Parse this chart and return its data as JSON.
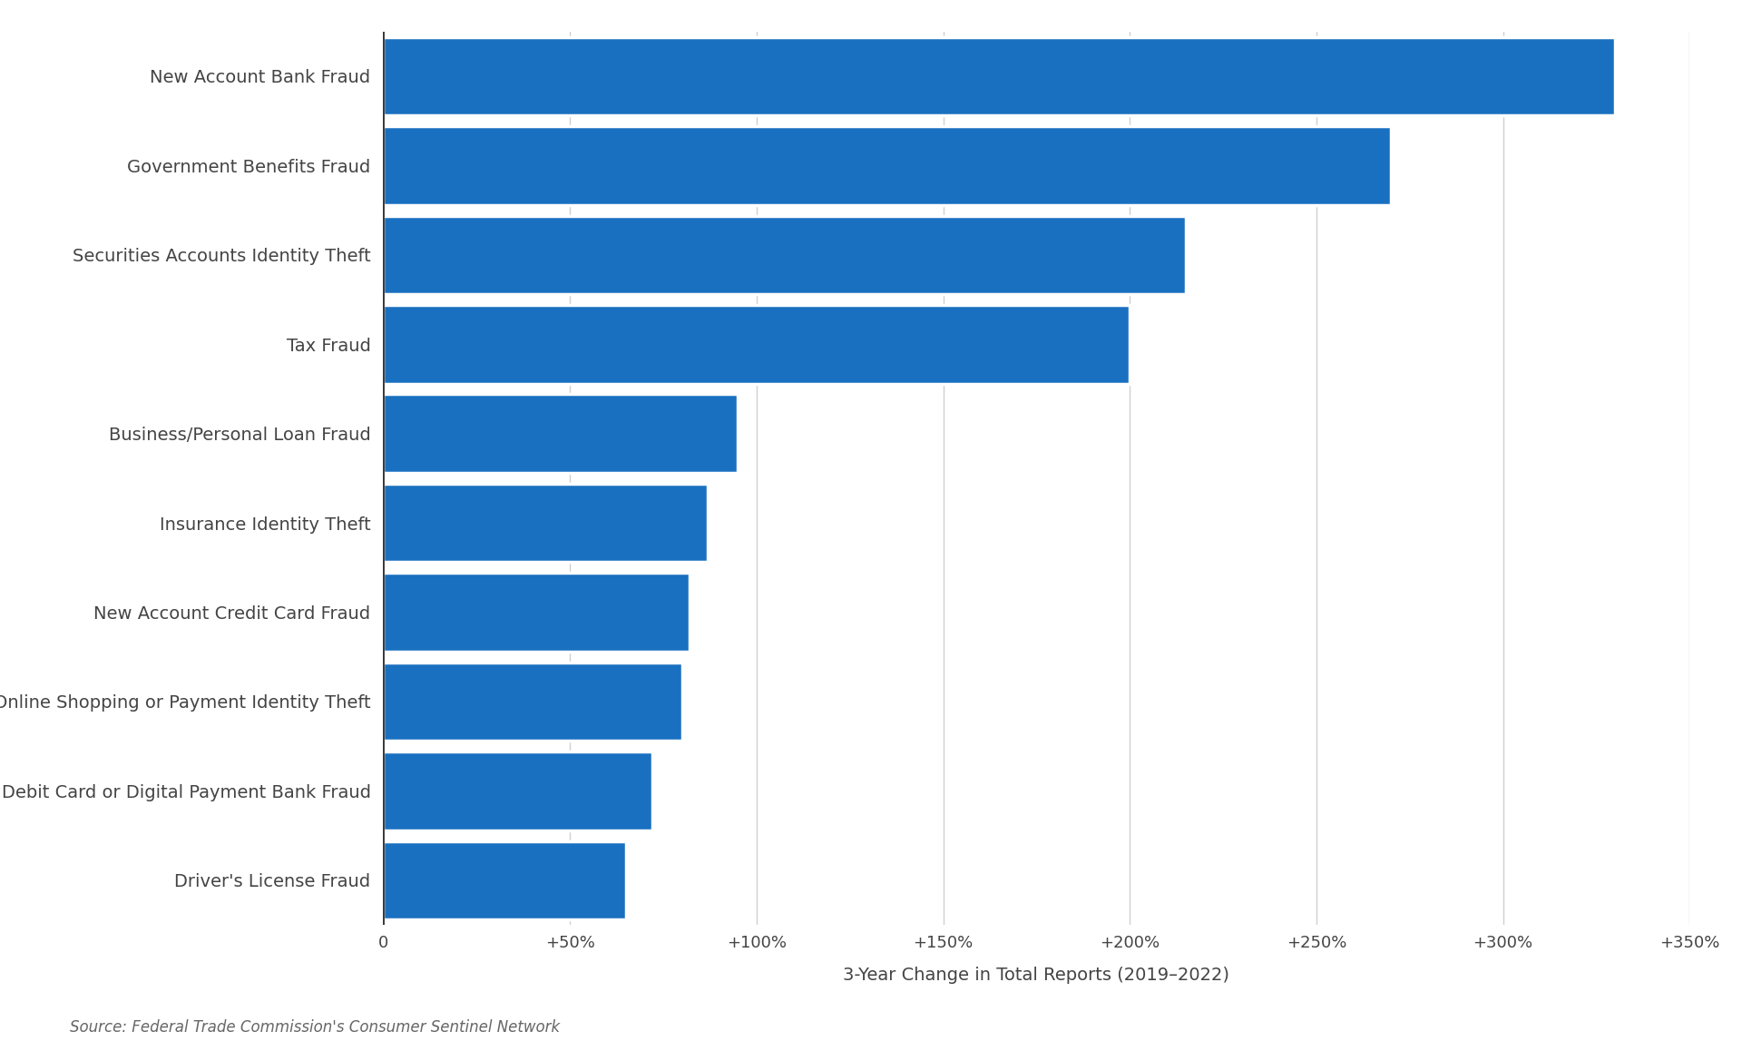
{
  "categories": [
    "Driver's License Fraud",
    "Debit Card or Digital Payment Bank Fraud",
    "Online Shopping or Payment Identity Theft",
    "New Account Credit Card Fraud",
    "Insurance Identity Theft",
    "Business/Personal Loan Fraud",
    "Tax Fraud",
    "Securities Accounts Identity Theft",
    "Government Benefits Fraud",
    "New Account Bank Fraud"
  ],
  "values": [
    65,
    72,
    80,
    82,
    87,
    95,
    200,
    215,
    270,
    330
  ],
  "bar_color": "#1a70c0",
  "background_color": "#ffffff",
  "xlabel": "3-Year Change in Total Reports (2019–2022)",
  "source": "Source: Federal Trade Commission's Consumer Sentinel Network",
  "xlim": [
    0,
    350
  ],
  "xtick_values": [
    0,
    50,
    100,
    150,
    200,
    250,
    300,
    350
  ],
  "xtick_labels": [
    "0",
    "+50%",
    "+100%",
    "+150%",
    "+200%",
    "+250%",
    "+300%",
    "+350%"
  ],
  "bar_height": 0.88,
  "fig_width": 19.2,
  "fig_height": 11.58,
  "xlabel_fontsize": 14,
  "ytick_fontsize": 14,
  "xtick_fontsize": 13,
  "source_fontsize": 12,
  "grid_color": "#d0d0d0",
  "bar_edge_color": "white",
  "bar_linewidth": 2.5
}
